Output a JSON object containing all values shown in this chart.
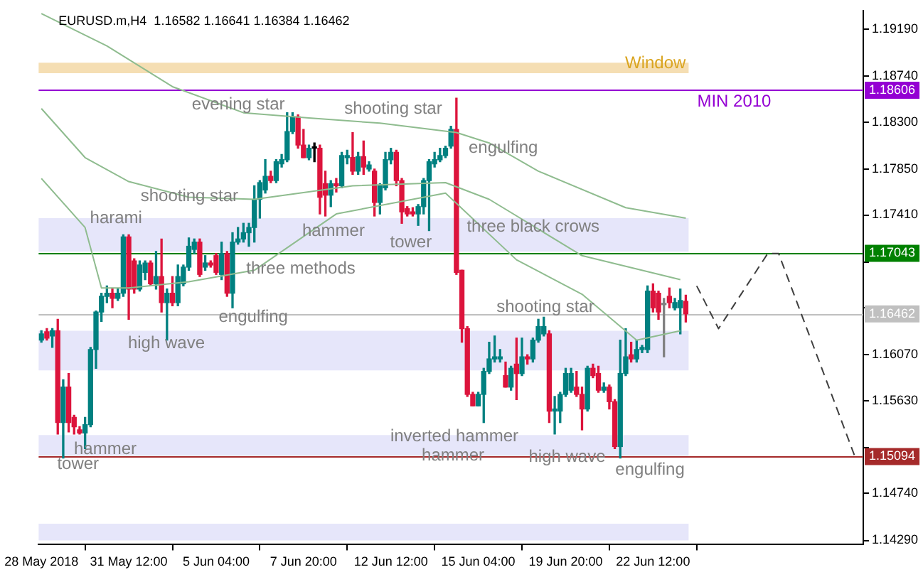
{
  "chart_data": {
    "type": "candlestick",
    "title": "EURUSD.m,H4  1.16582 1.16641 1.16384 1.16462",
    "categories": [
      "28 May 2018",
      null,
      null,
      null,
      null,
      null,
      null,
      null,
      null,
      null,
      null,
      null,
      null,
      null,
      null,
      null,
      "31 May 12:00",
      null,
      null,
      null,
      null,
      null,
      null,
      null,
      null,
      null,
      null,
      null,
      null,
      null,
      null,
      null,
      "5 Jun 04:00",
      null,
      null,
      null,
      null,
      null,
      null,
      null,
      null,
      null,
      null,
      null,
      null,
      null,
      null,
      null,
      "7 Jun 20:00",
      null,
      null,
      null,
      null,
      null,
      null,
      null,
      null,
      null,
      null,
      null,
      null,
      null,
      null,
      null,
      "12 Jun 12:00",
      null,
      null,
      null,
      null,
      null,
      null,
      null,
      null,
      null,
      null,
      null,
      null,
      null,
      null,
      null,
      "15 Jun 04:00",
      null,
      null,
      null,
      null,
      null,
      null,
      null,
      null,
      null,
      null,
      null,
      null,
      null,
      null,
      null,
      "19 Jun 20:00",
      null,
      null,
      null,
      null,
      null,
      null,
      null,
      null,
      null,
      null,
      null,
      null,
      null,
      null,
      null,
      "22 Jun 12:00",
      null,
      null,
      null,
      null,
      null,
      null,
      null,
      null,
      null,
      null,
      null,
      null,
      null,
      null,
      null,
      null,
      null,
      null,
      null,
      null,
      null,
      null,
      null,
      null,
      null,
      null,
      null,
      null,
      null,
      null,
      null,
      null,
      null,
      null,
      null,
      null,
      null,
      null
    ],
    "ylim": [
      1.1425,
      1.1937
    ],
    "yticks": [
      {
        "value": 1.1429,
        "label": "1.14290"
      },
      {
        "value": 1.1474,
        "label": "1.14740"
      },
      {
        "value": 1.1518,
        "label": null
      },
      {
        "value": 1.1563,
        "label": "1.15630"
      },
      {
        "value": 1.1607,
        "label": "1.16070"
      },
      {
        "value": 1.1652,
        "label": null
      },
      {
        "value": 1.1696,
        "label": null
      },
      {
        "value": 1.1741,
        "label": "1.17410"
      },
      {
        "value": 1.1785,
        "label": "1.17850"
      },
      {
        "value": 1.183,
        "label": "1.18300"
      },
      {
        "value": 1.1874,
        "label": "1.18740"
      },
      {
        "value": 1.1919,
        "label": "1.19190"
      }
    ],
    "grid": false,
    "legend": false,
    "marker": "none",
    "series": [
      {
        "ohlc": [
          [
            1.1621,
            1.163,
            1.1619,
            1.1627
          ],
          [
            1.1629,
            1.1632,
            1.1621,
            1.1623
          ],
          [
            1.1625,
            1.1632,
            1.1614,
            1.163
          ],
          [
            1.163,
            1.1641,
            1.1531,
            1.1542
          ],
          [
            1.1542,
            1.1583,
            1.1508,
            1.1576
          ],
          [
            1.1576,
            1.1589,
            1.1533,
            1.1542
          ],
          [
            1.1547,
            1.1549,
            1.1531,
            1.1538
          ],
          [
            1.1535,
            1.1538,
            1.1531,
            1.1532
          ],
          [
            1.1532,
            1.1547,
            1.1517,
            1.154
          ],
          [
            1.154,
            1.1614,
            1.1538,
            1.1612
          ],
          [
            1.1612,
            1.1649,
            1.1594,
            1.1648
          ],
          [
            1.1648,
            1.1666,
            1.1639,
            1.1663
          ],
          [
            1.1663,
            1.1673,
            1.1657,
            1.1666
          ],
          [
            1.1666,
            1.167,
            1.1652,
            1.1661
          ],
          [
            1.1661,
            1.167,
            1.1659,
            1.1666
          ],
          [
            1.1666,
            1.1722,
            1.1663,
            1.172
          ],
          [
            1.172,
            1.1722,
            1.1641,
            1.167
          ],
          [
            1.1697,
            1.1699,
            1.1666,
            1.167
          ],
          [
            1.167,
            1.1697,
            1.1668,
            1.1693
          ],
          [
            1.1686,
            1.1697,
            1.1679,
            1.1695
          ],
          [
            1.1695,
            1.1697,
            1.1673,
            1.1675
          ],
          [
            1.1675,
            1.1706,
            1.167,
            1.1682
          ],
          [
            1.1682,
            1.1718,
            1.1648,
            1.1657
          ],
          [
            1.1657,
            1.167,
            1.1621,
            1.1666
          ],
          [
            1.1666,
            1.1682,
            1.1654,
            1.1657
          ],
          [
            1.1657,
            1.1693,
            1.1654,
            1.1682
          ],
          [
            1.1675,
            1.1693,
            1.1673,
            1.1691
          ],
          [
            1.1691,
            1.1719,
            1.1688,
            1.1711
          ],
          [
            1.1708,
            1.1718,
            1.1704,
            1.1715
          ],
          [
            1.1715,
            1.1718,
            1.1682,
            1.1684
          ],
          [
            1.1691,
            1.1702,
            1.1688,
            1.1695
          ],
          [
            1.1695,
            1.1697,
            1.1691,
            1.1693
          ],
          [
            1.1702,
            1.1704,
            1.1684,
            1.1686
          ],
          [
            1.1684,
            1.1715,
            1.1679,
            1.1704
          ],
          [
            1.1704,
            1.1706,
            1.1663,
            1.1666
          ],
          [
            1.1666,
            1.1724,
            1.1652,
            1.1715
          ],
          [
            1.1715,
            1.1729,
            1.1713,
            1.1718
          ],
          [
            1.1718,
            1.1733,
            1.1715,
            1.1724
          ],
          [
            1.1724,
            1.1733,
            1.1711,
            1.1729
          ],
          [
            1.1729,
            1.1769,
            1.1715,
            1.1756
          ],
          [
            1.1756,
            1.1774,
            1.1738,
            1.1772
          ],
          [
            1.1765,
            1.1794,
            1.1762,
            1.1778
          ],
          [
            1.1778,
            1.1783,
            1.1772,
            1.1774
          ],
          [
            1.1774,
            1.1794,
            1.1772,
            1.1792
          ],
          [
            1.179,
            1.1799,
            1.1787,
            1.1794
          ],
          [
            1.1794,
            1.1839,
            1.1792,
            1.1821
          ],
          [
            1.1821,
            1.1839,
            1.1819,
            1.1835
          ],
          [
            1.1835,
            1.1837,
            1.1805,
            1.1808
          ],
          [
            1.1808,
            1.1823,
            1.1796,
            1.1796
          ],
          [
            1.1796,
            1.1808,
            1.1794,
            1.1805
          ],
          [
            1.1805,
            1.181,
            1.1792,
            1.1805
          ],
          [
            1.1805,
            1.1808,
            1.1742,
            1.1758
          ],
          [
            1.1771,
            1.1783,
            1.174,
            1.176
          ],
          [
            1.176,
            1.1774,
            1.1749,
            1.1771
          ],
          [
            1.1771,
            1.1776,
            1.1763,
            1.1769
          ],
          [
            1.1769,
            1.1801,
            1.1767,
            1.1798
          ],
          [
            1.1796,
            1.1803,
            1.179,
            1.1798
          ],
          [
            1.1796,
            1.182,
            1.178,
            1.1783
          ],
          [
            1.1783,
            1.1801,
            1.178,
            1.1797
          ],
          [
            1.1797,
            1.1812,
            1.178,
            1.1787
          ],
          [
            1.1785,
            1.1792,
            1.1783,
            1.1789
          ],
          [
            1.1783,
            1.1785,
            1.174,
            1.1753
          ],
          [
            1.1753,
            1.1771,
            1.1742,
            1.1769
          ],
          [
            1.1767,
            1.1801,
            1.1765,
            1.1794
          ],
          [
            1.1794,
            1.1805,
            1.179,
            1.1801
          ],
          [
            1.1801,
            1.1803,
            1.1769,
            1.1774
          ],
          [
            1.1774,
            1.1776,
            1.1733,
            1.1744
          ],
          [
            1.1747,
            1.1749,
            1.174,
            1.1742
          ],
          [
            1.1744,
            1.1748,
            1.174,
            1.1742
          ],
          [
            1.1742,
            1.1751,
            1.1731,
            1.1749
          ],
          [
            1.1749,
            1.1776,
            1.1742,
            1.1774
          ],
          [
            1.1774,
            1.1794,
            1.1726,
            1.1792
          ],
          [
            1.179,
            1.1801,
            1.1787,
            1.1794
          ],
          [
            1.1794,
            1.1805,
            1.1792,
            1.1798
          ],
          [
            1.1798,
            1.1807,
            1.1796,
            1.1805
          ],
          [
            1.1807,
            1.1826,
            1.1805,
            1.1823
          ],
          [
            1.1823,
            1.1853,
            1.1684,
            1.1686
          ],
          [
            1.1688,
            1.1688,
            1.1619,
            1.1632
          ],
          [
            1.1632,
            1.1634,
            1.1567,
            1.1569
          ],
          [
            1.1569,
            1.1571,
            1.1558,
            1.1558
          ],
          [
            1.1558,
            1.1571,
            1.1558,
            1.1569
          ],
          [
            1.1569,
            1.1594,
            1.1542,
            1.1591
          ],
          [
            1.1591,
            1.1619,
            1.1589,
            1.1603
          ],
          [
            1.1603,
            1.1625,
            1.16,
            1.1605
          ],
          [
            1.1603,
            1.1612,
            1.16,
            1.1605
          ],
          [
            1.1587,
            1.16,
            1.1576,
            1.1576
          ],
          [
            1.1576,
            1.1596,
            1.1573,
            1.1594
          ],
          [
            1.1598,
            1.1623,
            1.1564,
            1.1589
          ],
          [
            1.1589,
            1.1623,
            1.1587,
            1.1605
          ],
          [
            1.1605,
            1.1607,
            1.1598,
            1.1603
          ],
          [
            1.1603,
            1.1623,
            1.16,
            1.1621
          ],
          [
            1.1621,
            1.1641,
            1.1619,
            1.1634
          ],
          [
            1.1627,
            1.1643,
            1.1625,
            1.1634
          ],
          [
            1.1627,
            1.163,
            1.1542,
            1.1553
          ],
          [
            1.1553,
            1.1567,
            1.1531,
            1.1555
          ],
          [
            1.1553,
            1.1571,
            1.1542,
            1.1569
          ],
          [
            1.1569,
            1.1594,
            1.1567,
            1.1589
          ],
          [
            1.1573,
            1.1594,
            1.1571,
            1.1589
          ],
          [
            1.1576,
            1.1591,
            1.1567,
            1.1569
          ],
          [
            1.1569,
            1.1576,
            1.1535,
            1.1555
          ],
          [
            1.1555,
            1.1596,
            1.1553,
            1.1594
          ],
          [
            1.1594,
            1.1598,
            1.1585,
            1.1587
          ],
          [
            1.1589,
            1.1596,
            1.1571,
            1.1573
          ],
          [
            1.1573,
            1.158,
            1.1571,
            1.1576
          ],
          [
            1.1576,
            1.1578,
            1.1555,
            1.1562
          ],
          [
            1.1562,
            1.1564,
            1.1517,
            1.1519
          ],
          [
            1.1519,
            1.1621,
            1.1508,
            1.1589
          ],
          [
            1.1589,
            1.1632,
            1.1587,
            1.1605
          ],
          [
            1.1607,
            1.1619,
            1.16,
            1.1603
          ],
          [
            1.1603,
            1.1621,
            1.16,
            1.1612
          ],
          [
            1.1612,
            1.1616,
            1.1609,
            1.1614
          ],
          [
            1.1612,
            1.1673,
            1.1609,
            1.1668
          ],
          [
            1.1668,
            1.1675,
            1.1648,
            1.1652
          ],
          [
            1.1666,
            1.1668,
            1.1641,
            1.1648
          ],
          [
            1.1655,
            1.1661,
            1.1605,
            1.1655
          ],
          [
            1.1663,
            1.1671,
            1.1652,
            1.1657
          ],
          [
            1.1652,
            1.1661,
            1.165,
            1.1657
          ],
          [
            1.1652,
            1.167,
            1.1627,
            1.1659
          ],
          [
            1.16582,
            1.16641,
            1.16384,
            1.16462
          ],
          null,
          null,
          null,
          null,
          null,
          null,
          null,
          null,
          null,
          null,
          null,
          null,
          null,
          null,
          null,
          null,
          null,
          null,
          null,
          null,
          null,
          null,
          null,
          null,
          null,
          null,
          null,
          null,
          null,
          null,
          null,
          null
        ],
        "colors": [
          "#008080",
          "#dc143c",
          "#008080",
          "#dc143c",
          "#008080",
          "#dc143c",
          "#dc143c",
          "#dc143c",
          "#008080",
          "#008080",
          "#008080",
          "#008080",
          "#008080",
          "#dc143c",
          "#008080",
          "#008080",
          "#dc143c",
          "#dc143c",
          "#008080",
          "#008080",
          "#dc143c",
          "#008080",
          "#dc143c",
          "#008080",
          "#dc143c",
          "#008080",
          "#008080",
          "#008080",
          "#008080",
          "#dc143c",
          "#008080",
          "#dc143c",
          "#dc143c",
          "#008080",
          "#dc143c",
          "#008080",
          "#008080",
          "#008080",
          "#008080",
          "#008080",
          "#008080",
          "#008080",
          "#dc143c",
          "#008080",
          "#008080",
          "#008080",
          "#008080",
          "#dc143c",
          "#dc143c",
          "#008080",
          "#000000",
          "#dc143c",
          "#dc143c",
          "#008080",
          "#dc143c",
          "#008080",
          "#008080",
          "#dc143c",
          "#008080",
          "#dc143c",
          "#008080",
          "#dc143c",
          "#008080",
          "#008080",
          "#008080",
          "#dc143c",
          "#dc143c",
          "#dc143c",
          "#dc143c",
          "#008080",
          "#008080",
          "#008080",
          "#008080",
          "#008080",
          "#008080",
          "#008080",
          "#dc143c",
          "#dc143c",
          "#dc143c",
          "#dc143c",
          "#008080",
          "#008080",
          "#008080",
          "#008080",
          "#008080",
          "#dc143c",
          "#008080",
          "#dc143c",
          "#008080",
          "#dc143c",
          "#008080",
          "#008080",
          "#008080",
          "#dc143c",
          "#008080",
          "#008080",
          "#008080",
          "#008080",
          "#dc143c",
          "#dc143c",
          "#008080",
          "#dc143c",
          "#dc143c",
          "#008080",
          "#dc143c",
          "#dc143c",
          "#008080",
          "#008080",
          "#dc143c",
          "#008080",
          "#008080",
          "#008080",
          "#dc143c",
          "#dc143c",
          "#808080",
          "#dc143c",
          "#008080",
          "#008080",
          "#dc143c",
          null,
          null,
          null,
          null,
          null,
          null,
          null,
          null,
          null,
          null,
          null,
          null,
          null,
          null,
          null,
          null,
          null,
          null,
          null,
          null,
          null,
          null,
          null,
          null,
          null,
          null,
          null,
          null,
          null,
          null,
          null,
          null
        ]
      },
      {
        "type": "line",
        "color": "#8fbc8f",
        "values": [
          1.1934,
          null,
          null,
          null,
          null,
          null,
          null,
          null,
          null,
          null,
          null,
          null,
          1.1903,
          null,
          null,
          null,
          null,
          null,
          null,
          null,
          null,
          null,
          null,
          null,
          1.1864,
          null,
          null,
          null,
          null,
          null,
          null,
          null,
          null,
          null,
          null,
          null,
          null,
          1.1839,
          null,
          null,
          null,
          null,
          null,
          null,
          null,
          null,
          null,
          null,
          null,
          1.1834,
          null,
          null,
          null,
          null,
          null,
          null,
          null,
          null,
          null,
          null,
          null,
          null,
          1.1829,
          null,
          null,
          null,
          null,
          null,
          null,
          null,
          null,
          null,
          null,
          null,
          null,
          null,
          1.182,
          null,
          null,
          null,
          null,
          null,
          1.181,
          null,
          null,
          null,
          null,
          null,
          null,
          null,
          null,
          1.1783,
          null,
          null,
          null,
          null,
          null,
          null,
          null,
          null,
          null,
          null,
          null,
          null,
          null,
          null,
          null,
          1.1748,
          null,
          null,
          null,
          null,
          null,
          null,
          null,
          null,
          null,
          null,
          1.1738,
          null,
          null,
          null,
          null,
          null,
          null,
          null,
          null,
          null,
          null,
          null,
          null,
          null,
          null,
          null,
          null,
          null,
          null,
          null,
          null,
          null,
          null,
          null,
          null,
          null,
          null,
          null,
          null,
          null,
          null,
          null,
          null
        ]
      },
      {
        "type": "line",
        "color": "#8fbc8f",
        "values": [
          1.1843,
          null,
          null,
          null,
          null,
          null,
          null,
          null,
          1.1796,
          null,
          null,
          null,
          null,
          null,
          null,
          null,
          1.1773,
          null,
          null,
          null,
          null,
          null,
          null,
          null,
          null,
          null,
          null,
          1.1758,
          null,
          null,
          null,
          null,
          null,
          null,
          null,
          null,
          null,
          null,
          null,
          1.1756,
          null,
          null,
          null,
          null,
          null,
          null,
          null,
          null,
          null,
          null,
          null,
          null,
          null,
          null,
          null,
          null,
          null,
          1.1769,
          null,
          null,
          null,
          null,
          null,
          null,
          null,
          null,
          null,
          null,
          null,
          null,
          null,
          null,
          null,
          null,
          1.1772,
          null,
          null,
          null,
          null,
          null,
          null,
          null,
          1.1756,
          null,
          null,
          null,
          null,
          null,
          null,
          null,
          null,
          null,
          null,
          null,
          null,
          null,
          null,
          null,
          null,
          1.1702,
          null,
          null,
          null,
          null,
          null,
          null,
          null,
          null,
          null,
          null,
          null,
          null,
          null,
          null,
          null,
          null,
          null,
          1.1679,
          null,
          null,
          null,
          null,
          null,
          null,
          null,
          null,
          null,
          null,
          null,
          null,
          null,
          null,
          null,
          null,
          null,
          null,
          null,
          null,
          null,
          null,
          null,
          null,
          null,
          null,
          null,
          null,
          null,
          null,
          null,
          null,
          null
        ]
      },
      {
        "type": "line",
        "color": "#8fbc8f",
        "values": [
          1.1776,
          null,
          null,
          null,
          null,
          null,
          null,
          null,
          1.1729,
          null,
          null,
          1.1671,
          null,
          null,
          null,
          null,
          1.1671,
          null,
          null,
          null,
          null,
          null,
          null,
          null,
          null,
          null,
          null,
          1.1677,
          null,
          null,
          null,
          null,
          null,
          null,
          null,
          null,
          null,
          null,
          null,
          1.1688,
          null,
          null,
          null,
          null,
          null,
          null,
          null,
          null,
          null,
          null,
          null,
          null,
          null,
          null,
          1.1742,
          null,
          null,
          null,
          null,
          null,
          null,
          null,
          null,
          null,
          null,
          null,
          null,
          null,
          null,
          null,
          null,
          null,
          null,
          null,
          1.1762,
          null,
          null,
          null,
          null,
          null,
          null,
          null,
          null,
          null,
          null,
          null,
          null,
          1.1698,
          null,
          null,
          null,
          null,
          null,
          null,
          null,
          null,
          null,
          null,
          null,
          1.1665,
          null,
          null,
          null,
          null,
          null,
          null,
          null,
          null,
          null,
          1.1621,
          null,
          null,
          null,
          null,
          null,
          null,
          null,
          1.163,
          null,
          null,
          null,
          null,
          null,
          null,
          null,
          null,
          null,
          null,
          null,
          null,
          null,
          null,
          null,
          null,
          null,
          null,
          null,
          null,
          null,
          null,
          null,
          null,
          null,
          null,
          null,
          null,
          null,
          null,
          null,
          null,
          null
        ]
      },
      {
        "type": "line",
        "color": "#404040",
        "line_style": "dashed",
        "values": [
          null,
          null,
          null,
          null,
          null,
          null,
          null,
          null,
          null,
          null,
          null,
          null,
          null,
          null,
          null,
          null,
          null,
          null,
          null,
          null,
          null,
          null,
          null,
          null,
          null,
          null,
          null,
          null,
          null,
          null,
          null,
          null,
          null,
          null,
          null,
          null,
          null,
          null,
          null,
          null,
          null,
          null,
          null,
          null,
          null,
          null,
          null,
          null,
          null,
          null,
          null,
          null,
          null,
          null,
          null,
          null,
          null,
          null,
          null,
          null,
          null,
          null,
          null,
          null,
          null,
          null,
          null,
          null,
          null,
          null,
          null,
          null,
          null,
          null,
          null,
          null,
          null,
          null,
          null,
          null,
          null,
          null,
          null,
          null,
          null,
          null,
          null,
          null,
          null,
          null,
          null,
          null,
          null,
          null,
          null,
          null,
          null,
          null,
          null,
          null,
          null,
          null,
          null,
          null,
          null,
          null,
          null,
          null,
          null,
          null,
          null,
          null,
          null,
          null,
          null,
          null,
          null,
          null,
          null,
          null,
          1.1673,
          null,
          null,
          null,
          1.1632,
          null,
          null,
          null,
          null,
          null,
          null,
          null,
          null,
          1.1704,
          null,
          1.1704,
          null,
          null,
          null,
          null,
          null,
          null,
          null,
          null,
          null,
          null,
          null,
          null,
          null,
          1.1509,
          null
        ]
      }
    ],
    "bands": [
      {
        "axis": "y",
        "from": 1.1877,
        "to": 1.1887,
        "label": "Window",
        "color": "#f5deb3"
      },
      {
        "axis": "y",
        "from": 1.1706,
        "to": 1.1738,
        "color": "#e6e6fa"
      },
      {
        "axis": "y",
        "from": 1.1592,
        "to": 1.163,
        "color": "#e6e6fa"
      },
      {
        "axis": "y",
        "from": 1.151,
        "to": 1.153,
        "color": "#e6e6fa"
      },
      {
        "axis": "y",
        "from": 1.1429,
        "to": 1.1445,
        "color": "#e6e6fa"
      }
    ],
    "ref_lines": [
      {
        "axis": "y",
        "value": 1.18606,
        "label": "MIN 2010",
        "color": "#9400d3"
      },
      {
        "axis": "y",
        "value": 1.17043,
        "color": "#008000"
      },
      {
        "axis": "y",
        "value": 1.16462,
        "color": "#c0c0c0"
      },
      {
        "axis": "y",
        "value": 1.15094,
        "color": "#a52a2a"
      }
    ],
    "annotations": [
      "evening star",
      "shooting star",
      "engulfing",
      "shooting star",
      "harami",
      "hammer",
      "tower",
      "three black crows",
      "three methods",
      "engulfing",
      "high wave",
      "shooting star",
      "hammer",
      "tower",
      "inverted hammer",
      "hammer",
      "high wave",
      "engulfing",
      {
        "text": "1.18606",
        "y": 1.18606
      },
      {
        "text": "1.17043",
        "y": 1.17043
      },
      {
        "text": "1.16462",
        "y": 1.16462
      },
      {
        "text": "1.15094",
        "y": 1.15094
      }
    ]
  }
}
